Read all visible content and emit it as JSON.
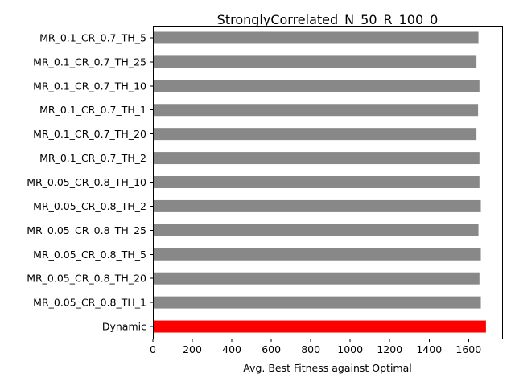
{
  "chart_data": {
    "type": "bar",
    "orientation": "horizontal",
    "title": "StronglyCorrelated_N_50_R_100_0",
    "xlabel": "Avg. Best Fitness against Optimal",
    "ylabel": "",
    "xlim": [
      0,
      1770
    ],
    "xticks": [
      0,
      200,
      400,
      600,
      800,
      1000,
      1200,
      1400,
      1600
    ],
    "grid": false,
    "legend": "none",
    "categories": [
      "MR_0.1_CR_0.7_TH_5",
      "MR_0.1_CR_0.7_TH_25",
      "MR_0.1_CR_0.7_TH_10",
      "MR_0.1_CR_0.7_TH_1",
      "MR_0.1_CR_0.7_TH_20",
      "MR_0.1_CR_0.7_TH_2",
      "MR_0.05_CR_0.8_TH_10",
      "MR_0.05_CR_0.8_TH_2",
      "MR_0.05_CR_0.8_TH_25",
      "MR_0.05_CR_0.8_TH_5",
      "MR_0.05_CR_0.8_TH_20",
      "MR_0.05_CR_0.8_TH_1",
      "Dynamic"
    ],
    "values": [
      1650,
      1640,
      1655,
      1648,
      1640,
      1655,
      1655,
      1662,
      1650,
      1662,
      1655,
      1662,
      1688
    ],
    "colors": [
      "#888888",
      "#888888",
      "#888888",
      "#888888",
      "#888888",
      "#888888",
      "#888888",
      "#888888",
      "#888888",
      "#888888",
      "#888888",
      "#888888",
      "#ff0000"
    ]
  }
}
